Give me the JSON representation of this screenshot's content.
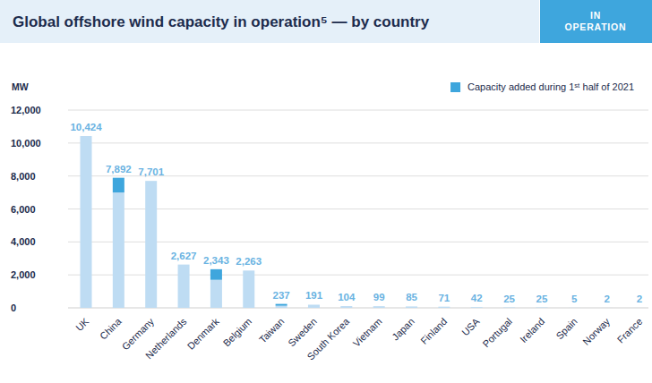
{
  "chart_data": {
    "type": "bar",
    "title": "Global offshore wind capacity in operation⁵ — by country",
    "badge": "IN OPERATION",
    "y_label": "MW",
    "categories": [
      "UK",
      "China",
      "Germany",
      "Netherlands",
      "Denmark",
      "Belgium",
      "Taiwan",
      "Sweden",
      "South Korea",
      "Vietnam",
      "Japan",
      "Finland",
      "USA",
      "Portugal",
      "Ireland",
      "Spain",
      "Norway",
      "France"
    ],
    "series": [
      {
        "color": "#bedcf3",
        "values": [
          10424,
          7000,
          7701,
          2627,
          1700,
          2263,
          128,
          191,
          104,
          99,
          85,
          71,
          42,
          25,
          25,
          5,
          2,
          2
        ]
      },
      {
        "name": "Capacity added during 1ˢᵗ half of 2021",
        "color": "#3ea6dd",
        "values": [
          0,
          892,
          0,
          0,
          643,
          0,
          109,
          0,
          0,
          0,
          0,
          0,
          0,
          0,
          0,
          0,
          0,
          0
        ]
      }
    ],
    "totals": [
      10424,
      7892,
      7701,
      2627,
      2343,
      2263,
      237,
      191,
      104,
      99,
      85,
      71,
      42,
      25,
      25,
      5,
      2,
      2
    ],
    "total_labels": [
      "10,424",
      "7,892",
      "7,701",
      "2,627",
      "2,343",
      "2,263",
      "237",
      "191",
      "104",
      "99",
      "85",
      "71",
      "42",
      "25",
      "25",
      "5",
      "2",
      "2"
    ],
    "stacked": true,
    "ylim": [
      0,
      12000
    ],
    "yticks": [
      0,
      {
        "value": 2000,
        "label": "2,000"
      },
      {
        "value": 4000,
        "label": "4,000"
      },
      {
        "value": 6000,
        "label": "6,000"
      },
      {
        "value": 8000,
        "label": "8,000"
      },
      {
        "value": 10000,
        "label": "10,000"
      },
      {
        "value": 12000,
        "label": "12,000"
      }
    ],
    "grid": true,
    "legend": "top-right"
  }
}
